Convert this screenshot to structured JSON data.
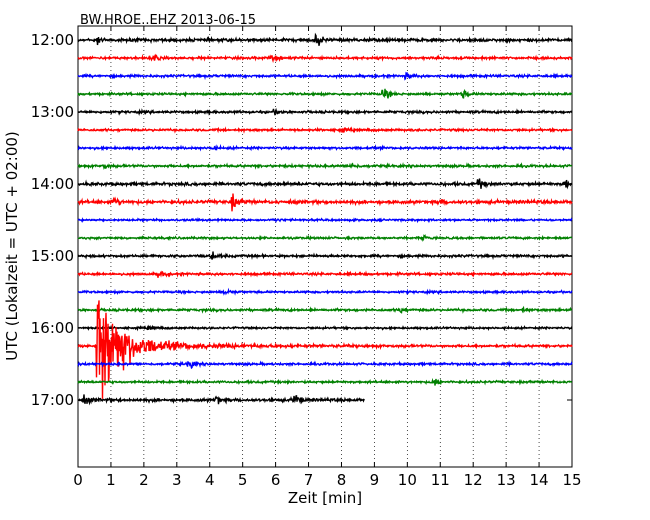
{
  "chart_data": {
    "type": "line",
    "title": "BW.HROE..EHZ 2013-06-15",
    "xlabel": "Zeit  [min]",
    "ylabel": "UTC (Lokalzeit = UTC + 02:00)",
    "xlim": [
      0,
      15
    ],
    "x_ticks": [
      "0",
      "1",
      "2",
      "3",
      "4",
      "5",
      "6",
      "7",
      "8",
      "9",
      "10",
      "11",
      "12",
      "13",
      "14",
      "15"
    ],
    "y_ticks": [
      "12:00",
      "13:00",
      "14:00",
      "15:00",
      "16:00",
      "17:00"
    ],
    "grid": "vertical dotted",
    "colors": [
      "#000000",
      "#ff0000",
      "#0000ff",
      "#008000"
    ],
    "series": [
      {
        "time": "12:00",
        "color": "#000000",
        "amplitude": 2.0,
        "x_end": 15,
        "events": [
          {
            "x": 0.6,
            "amp": 5
          },
          {
            "x": 7.25,
            "amp": 9
          }
        ]
      },
      {
        "time": "12:15",
        "color": "#ff0000",
        "amplitude": 1.6,
        "x_end": 15,
        "events": [
          {
            "x": 2.3,
            "amp": 4
          },
          {
            "x": 5.9,
            "amp": 4
          }
        ]
      },
      {
        "time": "12:30",
        "color": "#0000ff",
        "amplitude": 1.6,
        "x_end": 15,
        "events": [
          {
            "x": 10.0,
            "amp": 4
          }
        ]
      },
      {
        "time": "12:45",
        "color": "#008000",
        "amplitude": 1.5,
        "x_end": 15,
        "events": [
          {
            "x": 9.3,
            "amp": 9
          },
          {
            "x": 11.7,
            "amp": 5
          }
        ]
      },
      {
        "time": "13:00",
        "color": "#000000",
        "amplitude": 1.6,
        "x_end": 15,
        "events": [
          {
            "x": 6.0,
            "amp": 3
          }
        ]
      },
      {
        "time": "13:15",
        "color": "#ff0000",
        "amplitude": 1.5,
        "x_end": 15,
        "events": [
          {
            "x": 8.0,
            "amp": 3
          }
        ]
      },
      {
        "time": "13:30",
        "color": "#0000ff",
        "amplitude": 1.5,
        "x_end": 15,
        "events": [
          {
            "x": 4.1,
            "amp": 3
          }
        ]
      },
      {
        "time": "13:45",
        "color": "#008000",
        "amplitude": 1.6,
        "x_end": 15,
        "events": [
          {
            "x": 8.3,
            "amp": 4
          },
          {
            "x": 0.8,
            "amp": 3
          }
        ]
      },
      {
        "time": "14:00",
        "color": "#000000",
        "amplitude": 2.0,
        "x_end": 15,
        "events": [
          {
            "x": 12.2,
            "amp": 7
          },
          {
            "x": 14.8,
            "amp": 6
          }
        ]
      },
      {
        "time": "14:15",
        "color": "#ff0000",
        "amplitude": 2.2,
        "x_end": 15,
        "events": [
          {
            "x": 1.1,
            "amp": 8
          },
          {
            "x": 4.7,
            "amp": 10
          },
          {
            "x": 11.0,
            "amp": 4
          }
        ]
      },
      {
        "time": "14:30",
        "color": "#0000ff",
        "amplitude": 1.3,
        "x_end": 15,
        "events": [
          {
            "x": 6.0,
            "amp": 2
          }
        ]
      },
      {
        "time": "14:45",
        "color": "#008000",
        "amplitude": 1.4,
        "x_end": 15,
        "events": [
          {
            "x": 10.5,
            "amp": 3
          }
        ]
      },
      {
        "time": "15:00",
        "color": "#000000",
        "amplitude": 1.6,
        "x_end": 15,
        "events": [
          {
            "x": 4.1,
            "amp": 5
          }
        ]
      },
      {
        "time": "15:15",
        "color": "#ff0000",
        "amplitude": 1.6,
        "x_end": 15,
        "events": [
          {
            "x": 2.5,
            "amp": 5
          }
        ]
      },
      {
        "time": "15:30",
        "color": "#0000ff",
        "amplitude": 1.4,
        "x_end": 15,
        "events": [
          {
            "x": 4.5,
            "amp": 4
          }
        ]
      },
      {
        "time": "15:45",
        "color": "#008000",
        "amplitude": 1.6,
        "x_end": 15,
        "events": [
          {
            "x": 9.8,
            "amp": 4
          },
          {
            "x": 13.5,
            "amp": 3
          }
        ]
      },
      {
        "time": "16:00",
        "color": "#000000",
        "amplitude": 1.3,
        "x_end": 15,
        "events": [
          {
            "x": 2.2,
            "amp": 3
          }
        ]
      },
      {
        "time": "16:15",
        "color": "#ff0000",
        "amplitude": 1.6,
        "x_end": 15,
        "events": [
          {
            "x": 0.55,
            "amp": 110
          }
        ]
      },
      {
        "time": "16:30",
        "color": "#0000ff",
        "amplitude": 1.5,
        "x_end": 15,
        "events": [
          {
            "x": 3.4,
            "amp": 7
          }
        ]
      },
      {
        "time": "16:45",
        "color": "#008000",
        "amplitude": 1.5,
        "x_end": 15,
        "events": [
          {
            "x": 10.8,
            "amp": 6
          }
        ]
      },
      {
        "time": "17:00",
        "color": "#000000",
        "amplitude": 2.0,
        "x_end": 8.7,
        "events": [
          {
            "x": 0.2,
            "amp": 6
          },
          {
            "x": 4.2,
            "amp": 6
          },
          {
            "x": 6.6,
            "amp": 9
          }
        ]
      }
    ]
  }
}
